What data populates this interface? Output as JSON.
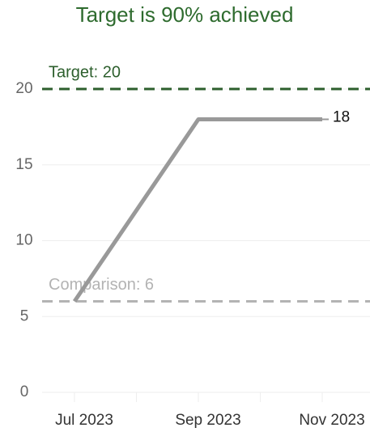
{
  "chart_data": {
    "type": "line",
    "title": "Target is 90% achieved",
    "categories": [
      "Jul 2023",
      "Sep 2023",
      "Nov 2023"
    ],
    "series": [
      {
        "name": null,
        "color": "#999999",
        "values": [
          6,
          18,
          18
        ]
      }
    ],
    "ylim": [
      0,
      20
    ],
    "yticks": [
      0,
      5,
      10,
      15,
      20
    ],
    "grid": true,
    "reference_lines": [
      {
        "label": "Target: 20",
        "value": 20,
        "color": "#2d5f2d"
      },
      {
        "label": "Comparison: 6",
        "value": 6,
        "color": "#b3b3b3"
      }
    ]
  }
}
